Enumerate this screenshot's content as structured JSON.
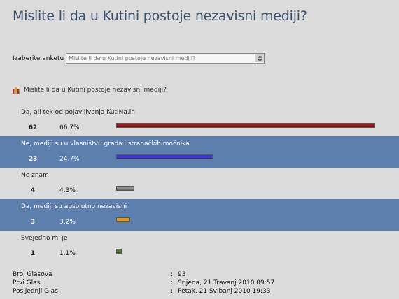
{
  "page": {
    "title": "Mislite li da u Kutini postoje nezavisni mediji?"
  },
  "selector": {
    "label": "Izaberite anketu",
    "value": "Mislite li da u Kutini postoje nezavisni mediji?",
    "button_icon": "chevron-down-icon"
  },
  "poll": {
    "question": "Mislite li da u Kutini postoje nezavisni mediji?",
    "icon": "poll-chart-icon",
    "options": [
      {
        "label": "Da, ali tek od pojavljivanja KutINa.in",
        "count": "62",
        "percent": "66.7%",
        "fraction": 0.667,
        "color": "#9b1c1c",
        "highlight": false
      },
      {
        "label": "Ne, mediji su u vlasništvu grada i stranačkih moćnika",
        "count": "23",
        "percent": "24.7%",
        "fraction": 0.247,
        "color": "#3c3ad0",
        "highlight": true
      },
      {
        "label": "Ne znam",
        "count": "4",
        "percent": "4.3%",
        "fraction": 0.043,
        "color": "#8f8f8f",
        "highlight": false
      },
      {
        "label": "Da, mediji su apsolutno nezavisni",
        "count": "3",
        "percent": "3.2%",
        "fraction": 0.032,
        "color": "#e39a14",
        "highlight": true
      },
      {
        "label": "Svejedno mi je",
        "count": "1",
        "percent": "1.1%",
        "fraction": 0.011,
        "color": "#4f7a2a",
        "highlight": false
      }
    ]
  },
  "stats": {
    "votes_label": "Broj Glasova",
    "votes_value": "93",
    "first_label": "Prvi Glas",
    "first_value": "Srijeda, 21 Travanj 2010 09:57",
    "last_label": "Posljednji Glas",
    "last_value": "Petak, 21 Svibanj 2010 19:33",
    "separator": ":"
  }
}
